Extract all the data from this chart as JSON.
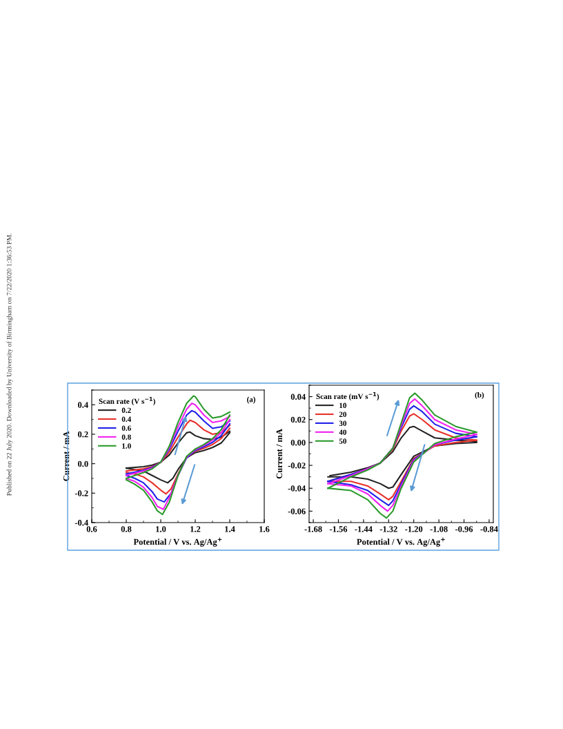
{
  "chart_data": [
    {
      "type": "line",
      "xlabel": "Potential / V vs. Ag/Ag$^{+}$",
      "ylabel": "Current / mA",
      "legend_title": "Scan rate (V s$^{−1}$)",
      "legend": "top left",
      "marker": "none",
      "line_style": "solid",
      "xlim": [
        0.6,
        1.6
      ],
      "xticks": [
        0.6,
        0.8,
        {
          "value": 1.0,
          "label": "1.0"
        },
        1.2,
        1.4,
        1.6
      ],
      "ylim": [
        -0.4,
        0.5
      ],
      "yticks": [
        -0.4,
        -0.2,
        {
          "value": 0.0,
          "label": "0.0"
        },
        0.2,
        0.4
      ],
      "annotations": [
        "(a)",
        "Published on 22 July 2020. Downloaded by University of Birmingham on 7/22/2020 1:36:53 PM."
      ],
      "series": [
        {
          "name": "0.2",
          "color": "#222222",
          "x": [
            0.8,
            0.9,
            0.95,
            1.0,
            1.05,
            1.1,
            1.15,
            1.17,
            1.2,
            1.25,
            1.3,
            1.35,
            1.4
          ],
          "values": [
            -0.03,
            -0.02,
            -0.01,
            0.01,
            0.06,
            0.14,
            0.21,
            0.215,
            0.19,
            0.17,
            0.165,
            0.18,
            0.22
          ]
        },
        {
          "color": "#222222",
          "x": [
            1.4,
            1.35,
            1.3,
            1.25,
            1.2,
            1.15,
            1.1,
            1.07,
            1.04,
            1.0,
            0.95,
            0.9,
            0.85,
            0.8
          ],
          "values": [
            0.21,
            0.14,
            0.11,
            0.09,
            0.075,
            0.04,
            -0.04,
            -0.1,
            -0.13,
            -0.11,
            -0.08,
            -0.05,
            -0.04,
            -0.03
          ]
        },
        {
          "name": "0.4",
          "color": "#e8302a",
          "x": [
            0.8,
            0.9,
            0.95,
            1.0,
            1.05,
            1.1,
            1.15,
            1.17,
            1.2,
            1.25,
            1.3,
            1.35,
            1.4
          ],
          "values": [
            -0.05,
            -0.035,
            -0.02,
            0.01,
            0.08,
            0.18,
            0.27,
            0.295,
            0.28,
            0.23,
            0.2,
            0.21,
            0.26
          ]
        },
        {
          "color": "#e8302a",
          "x": [
            1.4,
            1.35,
            1.3,
            1.25,
            1.2,
            1.15,
            1.1,
            1.06,
            1.03,
            1.0,
            0.95,
            0.9,
            0.85,
            0.8
          ],
          "values": [
            0.24,
            0.17,
            0.13,
            0.105,
            0.085,
            0.04,
            -0.07,
            -0.17,
            -0.205,
            -0.18,
            -0.13,
            -0.09,
            -0.07,
            -0.06
          ]
        },
        {
          "name": "0.6",
          "color": "#2020e8",
          "x": [
            0.8,
            0.9,
            0.95,
            1.0,
            1.05,
            1.1,
            1.15,
            1.18,
            1.2,
            1.25,
            1.3,
            1.35,
            1.4
          ],
          "values": [
            -0.07,
            -0.045,
            -0.025,
            0.01,
            0.1,
            0.22,
            0.33,
            0.36,
            0.35,
            0.29,
            0.24,
            0.25,
            0.29
          ]
        },
        {
          "color": "#2020e8",
          "x": [
            1.4,
            1.35,
            1.3,
            1.25,
            1.2,
            1.15,
            1.1,
            1.06,
            1.02,
            0.98,
            0.95,
            0.9,
            0.85,
            0.8
          ],
          "values": [
            0.27,
            0.19,
            0.145,
            0.115,
            0.09,
            0.04,
            -0.08,
            -0.2,
            -0.26,
            -0.24,
            -0.19,
            -0.13,
            -0.1,
            -0.08
          ]
        },
        {
          "name": "0.8",
          "color": "#f020f0",
          "x": [
            0.8,
            0.9,
            0.95,
            1.0,
            1.05,
            1.1,
            1.15,
            1.18,
            1.2,
            1.25,
            1.3,
            1.35,
            1.4
          ],
          "values": [
            -0.08,
            -0.05,
            -0.03,
            0.01,
            0.11,
            0.25,
            0.37,
            0.41,
            0.4,
            0.33,
            0.28,
            0.29,
            0.32
          ]
        },
        {
          "color": "#f020f0",
          "x": [
            1.4,
            1.35,
            1.3,
            1.25,
            1.2,
            1.15,
            1.1,
            1.05,
            1.015,
            0.98,
            0.95,
            0.9,
            0.85,
            0.8
          ],
          "values": [
            0.3,
            0.21,
            0.16,
            0.125,
            0.095,
            0.045,
            -0.08,
            -0.23,
            -0.31,
            -0.29,
            -0.23,
            -0.16,
            -0.12,
            -0.1
          ]
        },
        {
          "name": "1.0",
          "color": "#2a9a2a",
          "x": [
            0.8,
            0.9,
            0.95,
            1.0,
            1.05,
            1.1,
            1.15,
            1.19,
            1.2,
            1.25,
            1.3,
            1.35,
            1.4
          ],
          "values": [
            -0.1,
            -0.06,
            -0.035,
            0.01,
            0.12,
            0.28,
            0.41,
            0.46,
            0.455,
            0.37,
            0.31,
            0.32,
            0.35
          ]
        },
        {
          "color": "#2a9a2a",
          "x": [
            1.4,
            1.35,
            1.3,
            1.25,
            1.2,
            1.15,
            1.1,
            1.05,
            1.01,
            0.98,
            0.95,
            0.9,
            0.85,
            0.8
          ],
          "values": [
            0.33,
            0.23,
            0.17,
            0.13,
            0.1,
            0.05,
            -0.08,
            -0.26,
            -0.345,
            -0.32,
            -0.26,
            -0.18,
            -0.14,
            -0.11
          ]
        }
      ]
    },
    {
      "type": "line",
      "xlabel": "Potential / V vs. Ag/Ag$^{+}$",
      "ylabel": "Current / mA",
      "legend_title": "Scan rate (mV s$^{−1}$)",
      "legend": "top left",
      "marker": "none",
      "line_style": "solid",
      "xlim": [
        -1.7,
        -0.82
      ],
      "xticks": [
        -1.68,
        -1.56,
        -1.44,
        -1.32,
        {
          "value": -1.2,
          "label": "-1.20"
        },
        -1.08,
        -0.96,
        -0.84
      ],
      "ylim": [
        -0.07,
        0.05
      ],
      "yticks": [
        -0.06,
        -0.04,
        -0.02,
        {
          "value": 0.0,
          "label": "0.00"
        },
        0.02,
        0.04
      ],
      "annotations": [
        "(b)"
      ],
      "series": [
        {
          "name": "10",
          "color": "#222222",
          "x": [
            -0.9,
            -1.0,
            -1.1,
            -1.2,
            -1.26,
            -1.3,
            -1.32,
            -1.36,
            -1.42,
            -1.5,
            -1.61
          ],
          "values": [
            0.0,
            -0.001,
            -0.003,
            -0.012,
            -0.028,
            -0.039,
            -0.04,
            -0.036,
            -0.032,
            -0.03,
            -0.03
          ]
        },
        {
          "color": "#222222",
          "x": [
            -1.6,
            -1.5,
            -1.42,
            -1.36,
            -1.3,
            -1.26,
            -1.22,
            -1.2,
            -1.16,
            -1.1,
            -1.0,
            -0.9
          ],
          "values": [
            -0.029,
            -0.026,
            -0.022,
            -0.018,
            -0.008,
            0.004,
            0.013,
            0.014,
            0.01,
            0.004,
            0.002,
            0.001
          ]
        },
        {
          "name": "20",
          "color": "#e8302a",
          "x": [
            -0.9,
            -1.0,
            -1.1,
            -1.2,
            -1.26,
            -1.3,
            -1.32,
            -1.36,
            -1.42,
            -1.5,
            -1.61
          ],
          "values": [
            0.002,
            0.0,
            -0.003,
            -0.014,
            -0.034,
            -0.047,
            -0.05,
            -0.045,
            -0.038,
            -0.034,
            -0.034
          ]
        },
        {
          "color": "#e8302a",
          "x": [
            -1.61,
            -1.5,
            -1.42,
            -1.36,
            -1.3,
            -1.26,
            -1.22,
            -1.2,
            -1.16,
            -1.1,
            -1.0,
            -0.9
          ],
          "values": [
            -0.034,
            -0.028,
            -0.023,
            -0.018,
            -0.006,
            0.01,
            0.023,
            0.025,
            0.02,
            0.011,
            0.004,
            0.002
          ]
        },
        {
          "name": "30",
          "color": "#2020e8",
          "x": [
            -0.9,
            -1.0,
            -1.1,
            -1.2,
            -1.26,
            -1.3,
            -1.32,
            -1.36,
            -1.42,
            -1.5,
            -1.61
          ],
          "values": [
            0.005,
            0.002,
            -0.002,
            -0.015,
            -0.036,
            -0.051,
            -0.055,
            -0.05,
            -0.042,
            -0.037,
            -0.034
          ]
        },
        {
          "color": "#2020e8",
          "x": [
            -1.61,
            -1.5,
            -1.42,
            -1.36,
            -1.3,
            -1.26,
            -1.22,
            -1.2,
            -1.16,
            -1.1,
            -1.0,
            -0.9
          ],
          "values": [
            -0.034,
            -0.028,
            -0.023,
            -0.018,
            -0.005,
            0.013,
            0.029,
            0.032,
            0.027,
            0.016,
            0.008,
            0.005
          ]
        },
        {
          "name": "40",
          "color": "#f020f0",
          "x": [
            -0.9,
            -1.0,
            -1.1,
            -1.2,
            -1.26,
            -1.3,
            -1.325,
            -1.36,
            -1.42,
            -1.5,
            -1.61
          ],
          "values": [
            0.007,
            0.003,
            -0.002,
            -0.016,
            -0.038,
            -0.055,
            -0.06,
            -0.055,
            -0.045,
            -0.038,
            -0.036
          ]
        },
        {
          "color": "#f020f0",
          "x": [
            -1.61,
            -1.5,
            -1.42,
            -1.36,
            -1.3,
            -1.26,
            -1.22,
            -1.195,
            -1.16,
            -1.1,
            -1.0,
            -0.9
          ],
          "values": [
            -0.036,
            -0.029,
            -0.023,
            -0.018,
            -0.005,
            0.015,
            0.034,
            0.038,
            0.032,
            0.02,
            0.011,
            0.007
          ]
        },
        {
          "name": "50",
          "color": "#2a9a2a",
          "x": [
            -0.9,
            -1.0,
            -1.1,
            -1.2,
            -1.26,
            -1.3,
            -1.33,
            -1.36,
            -1.42,
            -1.5,
            -1.61
          ],
          "values": [
            0.009,
            0.005,
            -0.001,
            -0.017,
            -0.04,
            -0.06,
            -0.066,
            -0.062,
            -0.05,
            -0.042,
            -0.04
          ]
        },
        {
          "color": "#2a9a2a",
          "x": [
            -1.61,
            -1.5,
            -1.42,
            -1.36,
            -1.3,
            -1.26,
            -1.22,
            -1.195,
            -1.16,
            -1.1,
            -1.0,
            -0.9
          ],
          "values": [
            -0.04,
            -0.03,
            -0.024,
            -0.018,
            -0.005,
            0.017,
            0.039,
            0.043,
            0.037,
            0.024,
            0.014,
            0.009
          ]
        }
      ]
    }
  ]
}
